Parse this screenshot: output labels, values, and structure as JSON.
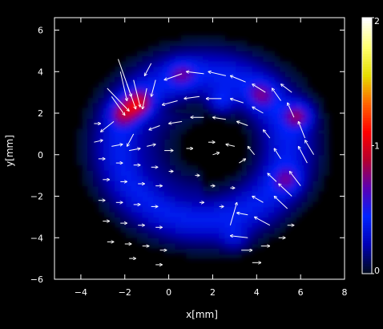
{
  "chart_data": {
    "type": "heatmap",
    "title": "",
    "xlabel": "x[mm]",
    "ylabel": "y[mm]",
    "xlim": [
      -5.2,
      8.0
    ],
    "ylim": [
      -6.0,
      6.6
    ],
    "xticks": [
      -4,
      -2,
      0,
      2,
      4,
      6,
      8
    ],
    "yticks": [
      -6,
      -4,
      -2,
      0,
      2,
      4,
      6
    ],
    "xtick_labels": [
      "−4",
      "−2",
      "0",
      "2",
      "4",
      "6",
      "8"
    ],
    "ytick_labels": [
      "−6",
      "−4",
      "−2",
      "0",
      "2",
      "4",
      "6"
    ],
    "colorbar": {
      "range": [
        0,
        2
      ],
      "tick_labels": [
        {
          "value": 0,
          "label": "0"
        },
        {
          "value": 1,
          "label": "1"
        },
        {
          "value": 2,
          "label": "2"
        }
      ],
      "colors": [
        "#000a1e",
        "#0000b4",
        "#0023ff",
        "#5a00b4",
        "#b4002d",
        "#ff0000",
        "#ff6400",
        "#e6dc00",
        "#ffff6e",
        "#ffffff"
      ]
    },
    "background_color": "#000000",
    "foreground_color": "#ffffff",
    "intensity_field": {
      "description": "horseshoe-shaped annular region open toward the lower-left, intensity values",
      "ring_center": [
        1.6,
        0.4
      ],
      "ring_radius": [
        3.8,
        3.5
      ],
      "base_intensity": 0.55,
      "hotspots": [
        {
          "x": -1.4,
          "y": 2.5,
          "value": 1.25
        },
        {
          "x": -2.1,
          "y": 2.0,
          "value": 1.05
        },
        {
          "x": 5.9,
          "y": 1.9,
          "value": 1.1
        },
        {
          "x": 4.2,
          "y": 2.9,
          "value": 0.85
        },
        {
          "x": 0.6,
          "y": 3.9,
          "value": 0.8
        },
        {
          "x": 5.4,
          "y": -1.2,
          "value": 0.85
        },
        {
          "x": 3.0,
          "y": -4.0,
          "value": 0.6
        },
        {
          "x": 2.4,
          "y": 2.6,
          "value": 0.75
        }
      ]
    },
    "vectors": {
      "description": "flow arrows, each [x, y, dx, dy] in mm",
      "arrows": [
        [
          -2.3,
          4.6,
          0.6,
          -1.8
        ],
        [
          -2.8,
          3.2,
          1.0,
          -1.1
        ],
        [
          -1.6,
          3.6,
          0.3,
          -1.3
        ],
        [
          -1.0,
          3.2,
          -0.2,
          -1.0
        ],
        [
          -2.5,
          1.6,
          -0.6,
          -0.5
        ],
        [
          -1.6,
          1.0,
          -0.3,
          -0.6
        ],
        [
          -0.6,
          3.6,
          -0.2,
          -0.8
        ],
        [
          0.6,
          3.9,
          -0.8,
          -0.3
        ],
        [
          1.6,
          3.9,
          -0.8,
          0.1
        ],
        [
          2.6,
          3.8,
          -0.8,
          0.2
        ],
        [
          3.5,
          3.5,
          -0.7,
          0.3
        ],
        [
          4.4,
          3.0,
          -0.6,
          0.4
        ],
        [
          5.1,
          2.6,
          -0.4,
          0.6
        ],
        [
          5.7,
          1.8,
          -0.3,
          0.7
        ],
        [
          6.2,
          0.8,
          -0.3,
          0.8
        ],
        [
          6.3,
          -0.4,
          -0.4,
          0.8
        ],
        [
          6.0,
          -1.5,
          -0.5,
          0.7
        ],
        [
          5.4,
          -2.6,
          -0.6,
          0.6
        ],
        [
          4.6,
          -3.4,
          -0.7,
          0.4
        ],
        [
          3.6,
          -4.0,
          -0.8,
          0.1
        ],
        [
          2.8,
          -3.4,
          0.3,
          1.1
        ],
        [
          0.4,
          2.6,
          -0.7,
          -0.2
        ],
        [
          1.4,
          2.8,
          -0.7,
          -0.1
        ],
        [
          2.4,
          2.7,
          -0.7,
          0.0
        ],
        [
          3.4,
          2.5,
          -0.6,
          0.2
        ],
        [
          4.3,
          2.0,
          -0.5,
          0.3
        ],
        [
          -0.4,
          1.4,
          -0.5,
          -0.2
        ],
        [
          0.6,
          1.6,
          -0.6,
          -0.1
        ],
        [
          1.6,
          1.8,
          -0.6,
          0.0
        ],
        [
          2.6,
          1.7,
          -0.6,
          0.1
        ],
        [
          3.6,
          1.4,
          -0.5,
          0.2
        ],
        [
          4.6,
          0.8,
          -0.3,
          0.4
        ],
        [
          5.1,
          -0.2,
          -0.3,
          0.5
        ],
        [
          4.9,
          -1.3,
          -0.4,
          0.4
        ],
        [
          4.3,
          -2.3,
          -0.5,
          0.3
        ],
        [
          3.6,
          -2.9,
          -0.5,
          0.1
        ],
        [
          -3.4,
          0.6,
          0.4,
          0.1
        ],
        [
          -2.6,
          0.4,
          0.5,
          0.1
        ],
        [
          -1.8,
          0.2,
          0.5,
          0.1
        ],
        [
          -1.0,
          0.4,
          0.4,
          0.1
        ],
        [
          -0.2,
          0.2,
          0.4,
          0.0
        ],
        [
          0.8,
          0.3,
          0.3,
          0.0
        ],
        [
          1.8,
          0.6,
          0.3,
          0.0
        ],
        [
          -3.2,
          -0.2,
          0.3,
          0.0
        ],
        [
          -2.4,
          -0.4,
          0.3,
          0.0
        ],
        [
          -1.6,
          -0.5,
          0.3,
          0.0
        ],
        [
          -0.8,
          -0.6,
          0.3,
          0.0
        ],
        [
          0.0,
          -0.8,
          0.2,
          0.0
        ],
        [
          -3.0,
          -1.2,
          0.3,
          0.0
        ],
        [
          -2.2,
          -1.3,
          0.3,
          0.0
        ],
        [
          -1.4,
          -1.4,
          0.3,
          0.0
        ],
        [
          -0.6,
          -1.5,
          0.3,
          0.0
        ],
        [
          -3.2,
          -2.2,
          0.3,
          0.0
        ],
        [
          -2.4,
          -2.3,
          0.3,
          0.0
        ],
        [
          -1.6,
          -2.4,
          0.3,
          0.0
        ],
        [
          -0.8,
          -2.5,
          0.3,
          0.0
        ],
        [
          -3.0,
          -3.2,
          0.3,
          0.0
        ],
        [
          -2.2,
          -3.3,
          0.3,
          0.0
        ],
        [
          -1.4,
          -3.4,
          0.3,
          0.0
        ],
        [
          -0.6,
          -3.5,
          0.3,
          0.0
        ],
        [
          -2.8,
          -4.2,
          0.3,
          0.0
        ],
        [
          -2.0,
          -4.3,
          0.3,
          0.0
        ],
        [
          -1.2,
          -4.4,
          0.3,
          0.0
        ],
        [
          -0.4,
          -4.6,
          0.3,
          0.0
        ],
        [
          -1.8,
          -5.0,
          0.3,
          0.0
        ],
        [
          -0.6,
          -5.3,
          0.3,
          0.0
        ],
        [
          1.2,
          -1.0,
          0.2,
          0.0
        ],
        [
          1.9,
          -1.5,
          0.2,
          0.0
        ],
        [
          2.8,
          -1.6,
          0.2,
          0.0
        ],
        [
          1.4,
          -2.3,
          0.2,
          0.0
        ],
        [
          2.3,
          -2.5,
          0.2,
          0.0
        ],
        [
          3.3,
          -4.6,
          0.5,
          0.0
        ],
        [
          4.2,
          -4.4,
          0.4,
          0.0
        ],
        [
          5.4,
          -3.4,
          0.3,
          0.0
        ],
        [
          3.8,
          -5.2,
          0.4,
          0.0
        ],
        [
          5.0,
          -4.0,
          0.3,
          0.0
        ],
        [
          2.0,
          0.0,
          0.3,
          0.1
        ],
        [
          3.2,
          -0.4,
          0.3,
          0.2
        ],
        [
          3.9,
          0.0,
          -0.3,
          0.4
        ],
        [
          3.0,
          0.4,
          -0.4,
          0.1
        ],
        [
          -2.6,
          2.8,
          0.6,
          -0.9
        ],
        [
          -1.9,
          3.4,
          0.4,
          -1.2
        ],
        [
          -3.4,
          1.5,
          0.3,
          0.0
        ],
        [
          -2.2,
          4.0,
          0.3,
          -1.4
        ],
        [
          -0.8,
          4.4,
          -0.3,
          -0.6
        ],
        [
          5.6,
          3.0,
          -0.5,
          0.4
        ],
        [
          6.6,
          0.0,
          -0.4,
          0.7
        ],
        [
          5.6,
          -2.0,
          -0.6,
          0.6
        ]
      ]
    }
  }
}
